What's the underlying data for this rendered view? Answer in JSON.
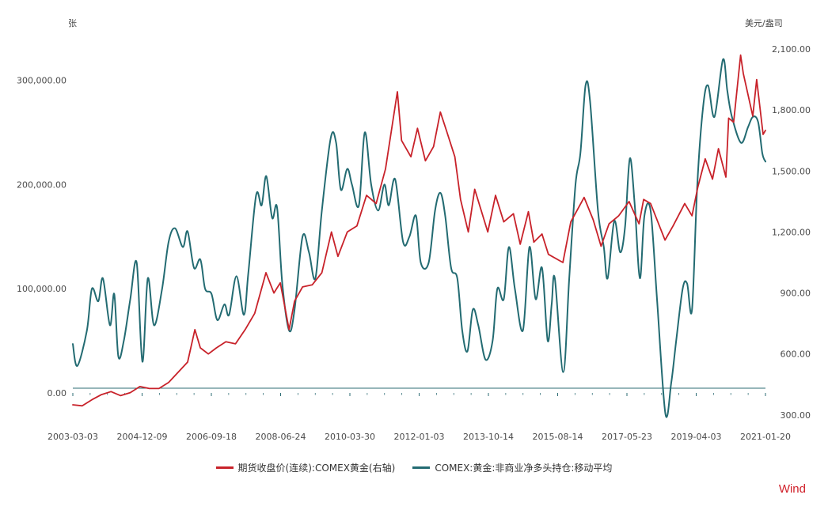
{
  "chart_data": {
    "type": "line",
    "left_unit": "张",
    "right_unit": "美元/盎司",
    "left_ylim": [
      -25000,
      330000
    ],
    "left_ticks": [
      "0.00",
      "100,000.00",
      "200,000.00",
      "300,000.00"
    ],
    "left_tick_values": [
      0,
      100000,
      200000,
      300000
    ],
    "right_ylim": [
      280,
      2100
    ],
    "right_ticks": [
      "300.00",
      "600.00",
      "900.00",
      "1,200.00",
      "1,500.00",
      "1,800.00",
      "2,100.00"
    ],
    "right_tick_values": [
      300,
      600,
      900,
      1200,
      1500,
      1800,
      2100
    ],
    "x_tick_labels": [
      "2003-03-03",
      "2004-12-09",
      "2006-09-18",
      "2008-06-24",
      "2010-03-30",
      "2012-01-03",
      "2013-10-14",
      "2015-08-14",
      "2017-05-23",
      "2019-04-03",
      "2021-01-20"
    ],
    "x_range": [
      "2003-03-03",
      "2021-03-31"
    ],
    "grid": false,
    "legend_position": "bottom",
    "series": [
      {
        "name": "期货收盘价(连续):COMEX黄金(右轴)",
        "axis": "right",
        "color": "#c8222a",
        "points": [
          [
            "2003-03-03",
            350
          ],
          [
            "2003-06-01",
            345
          ],
          [
            "2003-09-01",
            375
          ],
          [
            "2003-12-01",
            400
          ],
          [
            "2004-03-01",
            415
          ],
          [
            "2004-06-01",
            395
          ],
          [
            "2004-09-01",
            410
          ],
          [
            "2004-12-01",
            440
          ],
          [
            "2005-03-01",
            430
          ],
          [
            "2005-06-01",
            430
          ],
          [
            "2005-09-01",
            460
          ],
          [
            "2005-12-01",
            510
          ],
          [
            "2006-03-01",
            560
          ],
          [
            "2006-05-10",
            720
          ],
          [
            "2006-07-01",
            630
          ],
          [
            "2006-09-15",
            600
          ],
          [
            "2006-12-01",
            630
          ],
          [
            "2007-03-01",
            660
          ],
          [
            "2007-06-01",
            650
          ],
          [
            "2007-09-01",
            720
          ],
          [
            "2007-12-01",
            800
          ],
          [
            "2008-03-17",
            1000
          ],
          [
            "2008-06-01",
            900
          ],
          [
            "2008-08-01",
            950
          ],
          [
            "2008-10-24",
            720
          ],
          [
            "2008-12-15",
            860
          ],
          [
            "2009-03-01",
            930
          ],
          [
            "2009-06-01",
            940
          ],
          [
            "2009-09-01",
            1000
          ],
          [
            "2009-12-01",
            1200
          ],
          [
            "2010-02-01",
            1080
          ],
          [
            "2010-05-01",
            1200
          ],
          [
            "2010-08-01",
            1230
          ],
          [
            "2010-11-01",
            1380
          ],
          [
            "2011-02-01",
            1340
          ],
          [
            "2011-05-01",
            1510
          ],
          [
            "2011-08-22",
            1890
          ],
          [
            "2011-10-01",
            1650
          ],
          [
            "2011-12-29",
            1570
          ],
          [
            "2012-03-01",
            1710
          ],
          [
            "2012-05-15",
            1550
          ],
          [
            "2012-08-01",
            1620
          ],
          [
            "2012-10-05",
            1790
          ],
          [
            "2012-12-01",
            1700
          ],
          [
            "2013-02-20",
            1570
          ],
          [
            "2013-04-15",
            1360
          ],
          [
            "2013-06-28",
            1200
          ],
          [
            "2013-08-28",
            1410
          ],
          [
            "2013-12-31",
            1200
          ],
          [
            "2014-03-15",
            1380
          ],
          [
            "2014-06-01",
            1250
          ],
          [
            "2014-09-01",
            1290
          ],
          [
            "2014-11-05",
            1140
          ],
          [
            "2015-01-22",
            1300
          ],
          [
            "2015-03-15",
            1150
          ],
          [
            "2015-06-01",
            1190
          ],
          [
            "2015-08-01",
            1090
          ],
          [
            "2015-12-17",
            1050
          ],
          [
            "2016-03-01",
            1250
          ],
          [
            "2016-07-06",
            1370
          ],
          [
            "2016-10-01",
            1260
          ],
          [
            "2016-12-15",
            1130
          ],
          [
            "2017-03-01",
            1240
          ],
          [
            "2017-06-01",
            1280
          ],
          [
            "2017-09-08",
            1350
          ],
          [
            "2017-12-12",
            1240
          ],
          [
            "2018-01-25",
            1360
          ],
          [
            "2018-04-01",
            1340
          ],
          [
            "2018-08-16",
            1160
          ],
          [
            "2018-11-01",
            1230
          ],
          [
            "2019-02-20",
            1340
          ],
          [
            "2019-05-01",
            1280
          ],
          [
            "2019-06-25",
            1420
          ],
          [
            "2019-09-04",
            1560
          ],
          [
            "2019-11-12",
            1460
          ],
          [
            "2020-01-08",
            1610
          ],
          [
            "2020-03-19",
            1470
          ],
          [
            "2020-04-14",
            1760
          ],
          [
            "2020-06-01",
            1740
          ],
          [
            "2020-08-06",
            2070
          ],
          [
            "2020-09-01",
            1980
          ],
          [
            "2020-11-30",
            1770
          ],
          [
            "2021-01-06",
            1950
          ],
          [
            "2021-03-08",
            1680
          ],
          [
            "2021-03-31",
            1700
          ]
        ]
      },
      {
        "name": "COMEX:黄金:非商业净多头持仓:移动平均",
        "axis": "left",
        "color": "#236b72",
        "points": [
          [
            "2003-03-03",
            47000
          ],
          [
            "2003-04-15",
            26000
          ],
          [
            "2003-07-15",
            60000
          ],
          [
            "2003-09-01",
            100000
          ],
          [
            "2003-11-01",
            88000
          ],
          [
            "2003-12-15",
            110000
          ],
          [
            "2004-02-20",
            65000
          ],
          [
            "2004-04-01",
            95000
          ],
          [
            "2004-05-10",
            35000
          ],
          [
            "2004-07-01",
            50000
          ],
          [
            "2004-09-01",
            90000
          ],
          [
            "2004-11-01",
            125000
          ],
          [
            "2004-12-25",
            30000
          ],
          [
            "2005-02-15",
            110000
          ],
          [
            "2005-04-15",
            65000
          ],
          [
            "2005-07-01",
            100000
          ],
          [
            "2005-09-01",
            145000
          ],
          [
            "2005-11-01",
            158000
          ],
          [
            "2006-01-15",
            140000
          ],
          [
            "2006-03-01",
            155000
          ],
          [
            "2006-05-01",
            120000
          ],
          [
            "2006-07-01",
            128000
          ],
          [
            "2006-08-15",
            100000
          ],
          [
            "2006-10-15",
            95000
          ],
          [
            "2006-12-10",
            70000
          ],
          [
            "2007-02-15",
            85000
          ],
          [
            "2007-04-01",
            75000
          ],
          [
            "2007-06-10",
            112000
          ],
          [
            "2007-08-20",
            75000
          ],
          [
            "2007-10-01",
            115000
          ],
          [
            "2007-12-15",
            190000
          ],
          [
            "2008-02-05",
            180000
          ],
          [
            "2008-03-20",
            208000
          ],
          [
            "2008-05-15",
            168000
          ],
          [
            "2008-07-01",
            178000
          ],
          [
            "2008-08-20",
            105000
          ],
          [
            "2008-10-24",
            60000
          ],
          [
            "2008-12-15",
            80000
          ],
          [
            "2009-03-01",
            150000
          ],
          [
            "2009-05-01",
            135000
          ],
          [
            "2009-07-01",
            110000
          ],
          [
            "2009-09-01",
            175000
          ],
          [
            "2009-11-25",
            245000
          ],
          [
            "2010-01-15",
            240000
          ],
          [
            "2010-03-01",
            195000
          ],
          [
            "2010-05-01",
            215000
          ],
          [
            "2010-06-15",
            200000
          ],
          [
            "2010-08-20",
            180000
          ],
          [
            "2010-10-15",
            250000
          ],
          [
            "2010-12-15",
            200000
          ],
          [
            "2011-02-20",
            175000
          ],
          [
            "2011-04-20",
            200000
          ],
          [
            "2011-06-01",
            180000
          ],
          [
            "2011-08-01",
            205000
          ],
          [
            "2011-10-15",
            145000
          ],
          [
            "2011-12-15",
            150000
          ],
          [
            "2012-02-15",
            170000
          ],
          [
            "2012-04-01",
            125000
          ],
          [
            "2012-06-15",
            125000
          ],
          [
            "2012-08-15",
            175000
          ],
          [
            "2012-10-05",
            192000
          ],
          [
            "2012-11-20",
            170000
          ],
          [
            "2013-01-15",
            120000
          ],
          [
            "2013-03-15",
            110000
          ],
          [
            "2013-05-01",
            60000
          ],
          [
            "2013-06-20",
            40000
          ],
          [
            "2013-08-10",
            80000
          ],
          [
            "2013-10-01",
            65000
          ],
          [
            "2013-12-10",
            32000
          ],
          [
            "2014-02-15",
            50000
          ],
          [
            "2014-04-01",
            100000
          ],
          [
            "2014-06-01",
            90000
          ],
          [
            "2014-07-20",
            140000
          ],
          [
            "2014-09-15",
            100000
          ],
          [
            "2014-12-01",
            60000
          ],
          [
            "2015-02-01",
            140000
          ],
          [
            "2015-04-01",
            90000
          ],
          [
            "2015-06-01",
            120000
          ],
          [
            "2015-07-25",
            50000
          ],
          [
            "2015-09-01",
            85000
          ],
          [
            "2015-10-01",
            110000
          ],
          [
            "2015-12-20",
            20000
          ],
          [
            "2016-02-15",
            110000
          ],
          [
            "2016-04-15",
            200000
          ],
          [
            "2016-06-01",
            230000
          ],
          [
            "2016-07-20",
            295000
          ],
          [
            "2016-09-01",
            280000
          ],
          [
            "2016-11-15",
            175000
          ],
          [
            "2017-01-10",
            140000
          ],
          [
            "2017-02-15",
            110000
          ],
          [
            "2017-04-20",
            165000
          ],
          [
            "2017-06-15",
            135000
          ],
          [
            "2017-08-01",
            160000
          ],
          [
            "2017-09-15",
            225000
          ],
          [
            "2017-11-01",
            180000
          ],
          [
            "2017-12-20",
            110000
          ],
          [
            "2018-02-01",
            170000
          ],
          [
            "2018-04-01",
            175000
          ],
          [
            "2018-06-01",
            90000
          ],
          [
            "2018-08-20",
            -20000
          ],
          [
            "2018-10-15",
            10000
          ],
          [
            "2018-12-01",
            50000
          ],
          [
            "2019-02-01",
            100000
          ],
          [
            "2019-03-15",
            105000
          ],
          [
            "2019-05-01",
            80000
          ],
          [
            "2019-06-20",
            200000
          ],
          [
            "2019-08-15",
            275000
          ],
          [
            "2019-10-01",
            295000
          ],
          [
            "2019-12-01",
            265000
          ],
          [
            "2020-02-20",
            320000
          ],
          [
            "2020-04-01",
            290000
          ],
          [
            "2020-05-15",
            265000
          ],
          [
            "2020-08-10",
            240000
          ],
          [
            "2020-10-15",
            255000
          ],
          [
            "2020-12-01",
            265000
          ],
          [
            "2021-01-20",
            260000
          ],
          [
            "2021-03-01",
            230000
          ],
          [
            "2021-03-31",
            222000
          ]
        ]
      }
    ]
  },
  "brand": "Wind"
}
